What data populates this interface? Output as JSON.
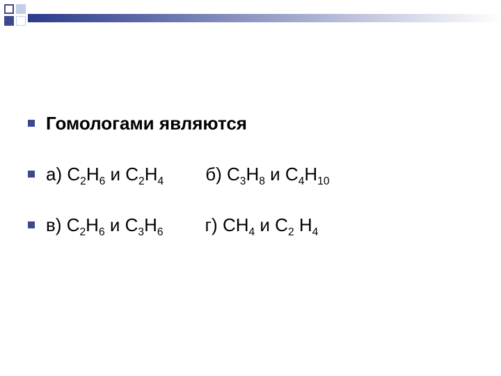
{
  "theme": {
    "accent_dark": "#3d488f",
    "accent_light": "#c4cde8",
    "topbar_gradient_from": "#2b3a8c",
    "topbar_gradient_to": "#ffffff",
    "bullet_color": "#3d488f",
    "text_color": "#000000",
    "background": "#ffffff",
    "font_size_pt": 26
  },
  "question": {
    "title": "Гомологами являются",
    "options": {
      "a": {
        "label": "а)",
        "formula": [
          "C",
          "2",
          "H",
          "6",
          " и C",
          "2",
          "H",
          "4"
        ]
      },
      "b": {
        "label": "б)",
        "formula": [
          "C",
          "3",
          "H",
          "8",
          " и C",
          "4",
          "H",
          "10"
        ]
      },
      "v": {
        "label": "в) ",
        "formula": [
          "C",
          "2",
          "H",
          "6",
          " и C",
          "3",
          "H",
          "6"
        ]
      },
      "g": {
        "label": "г)",
        "formula": [
          "CH",
          "4",
          " и C",
          "2",
          " H",
          "4"
        ]
      }
    }
  }
}
